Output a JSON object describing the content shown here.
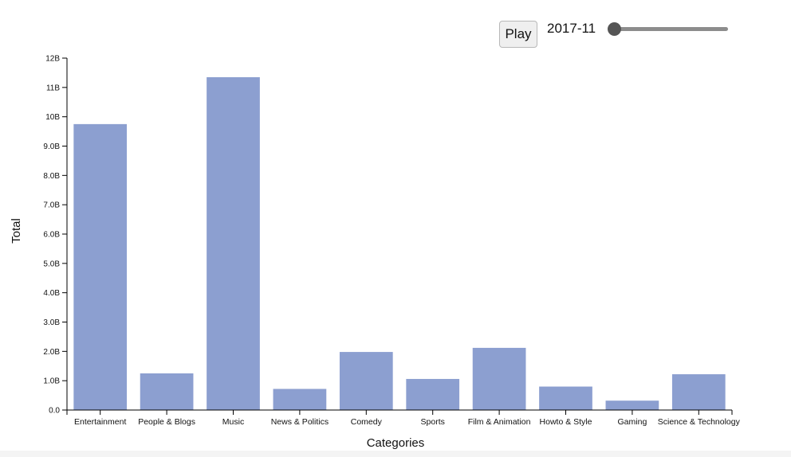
{
  "controls": {
    "play_label": "Play",
    "date_value": "2017-11",
    "slider_value_fraction": 0.0
  },
  "chart_data": {
    "type": "bar",
    "categories": [
      "Entertainment",
      "People & Blogs",
      "Music",
      "News & Politics",
      "Comedy",
      "Sports",
      "Film & Animation",
      "Howto & Style",
      "Gaming",
      "Science & Technology"
    ],
    "values": [
      9.75,
      1.25,
      11.35,
      0.72,
      1.98,
      1.06,
      2.12,
      0.8,
      0.32,
      1.22
    ],
    "value_unit": "B",
    "yticks": [
      0,
      1,
      2,
      3,
      4,
      5,
      6,
      7,
      8,
      9,
      10,
      11,
      12
    ],
    "ytick_labels": [
      "0.0",
      "1.0B",
      "2.0B",
      "3.0B",
      "4.0B",
      "5.0B",
      "6.0B",
      "7.0B",
      "8.0B",
      "9.0B",
      "10B",
      "11B",
      "12B"
    ],
    "xlabel": "Categories",
    "ylabel": "Total",
    "ylim": [
      0,
      12
    ],
    "grid": false,
    "bar_color": "#8c9fd0"
  }
}
